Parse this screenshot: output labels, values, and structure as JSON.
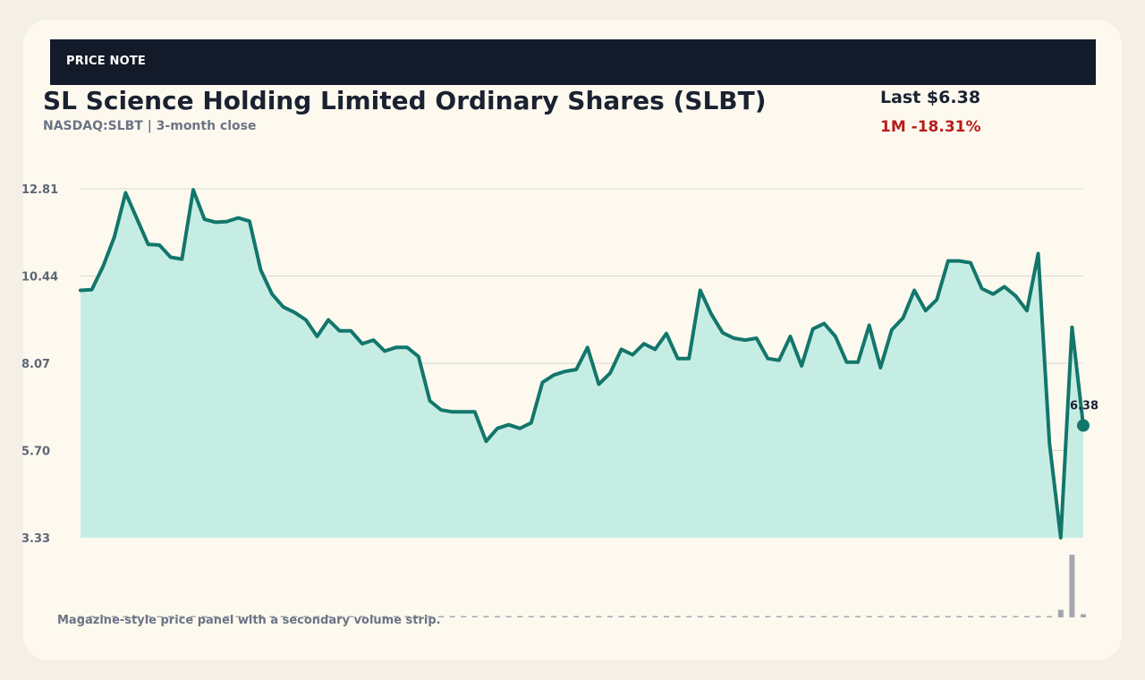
{
  "banner": {
    "label": "PRICE NOTE"
  },
  "header": {
    "title": "SL Science Holding Limited Ordinary Shares (SLBT)",
    "subtitle": "NASDAQ:SLBT | 3-month close",
    "last": "Last $6.38",
    "change": "1M -18.31%"
  },
  "caption": "Magazine-style price panel with a secondary volume strip.",
  "colors": {
    "line": "#13766b",
    "area": "#c6ede4",
    "grid": "#d9d6cc",
    "volume": "#a3a6b0",
    "negative": "#b91c1c"
  },
  "chart_data": {
    "type": "area",
    "y_ticks": [
      "12.81",
      "10.44",
      "8.07",
      "5.70",
      "3.33"
    ],
    "ylim": [
      3.33,
      12.81
    ],
    "end_label": "6.38",
    "price": [
      10.05,
      10.07,
      10.7,
      11.5,
      12.7,
      12.0,
      11.3,
      11.28,
      10.95,
      10.9,
      12.78,
      11.98,
      11.9,
      11.92,
      12.02,
      11.93,
      10.6,
      9.95,
      9.6,
      9.45,
      9.25,
      8.8,
      9.25,
      8.95,
      8.95,
      8.6,
      8.7,
      8.4,
      8.5,
      8.5,
      8.25,
      7.05,
      6.8,
      6.75,
      6.75,
      6.75,
      5.95,
      6.3,
      6.4,
      6.3,
      6.45,
      7.55,
      7.75,
      7.85,
      7.9,
      8.5,
      7.5,
      7.8,
      8.45,
      8.3,
      8.6,
      8.45,
      8.88,
      8.2,
      8.2,
      10.05,
      9.4,
      8.9,
      8.75,
      8.7,
      8.75,
      8.2,
      8.15,
      8.8,
      8.0,
      9.0,
      9.15,
      8.8,
      8.1,
      8.1,
      9.1,
      7.95,
      8.98,
      9.3,
      10.05,
      9.5,
      9.8,
      10.85,
      10.85,
      10.8,
      10.1,
      9.95,
      10.15,
      9.9,
      9.5,
      11.05,
      5.9,
      3.33,
      9.05,
      6.38
    ],
    "volume": [
      0.02,
      0.02,
      0.02,
      0.02,
      0.02,
      0.02,
      0.02,
      0.02,
      0.02,
      0.02,
      0.02,
      0.02,
      0.02,
      0.02,
      0.02,
      0.02,
      0.02,
      0.02,
      0.02,
      0.02,
      0.02,
      0.02,
      0.02,
      0.02,
      0.02,
      0.02,
      0.02,
      0.02,
      0.02,
      0.02,
      0.02,
      0.02,
      0.02,
      0.02,
      0.02,
      0.01,
      0.02,
      0.02,
      0.02,
      0.02,
      0.02,
      0.02,
      0.02,
      0.02,
      0.02,
      0.02,
      0.02,
      0.02,
      0.02,
      0.02,
      0.02,
      0.02,
      0.02,
      0.02,
      0.02,
      0.01,
      0.02,
      0.02,
      0.02,
      0.02,
      0.02,
      0.02,
      0.02,
      0.02,
      0.02,
      0.02,
      0.02,
      0.02,
      0.02,
      0.02,
      0.02,
      0.01,
      0.02,
      0.02,
      0.02,
      0.02,
      0.02,
      0.02,
      0.02,
      0.01,
      0.02,
      0.02,
      0.02,
      0.02,
      0.02,
      0.02,
      0.02,
      0.12,
      1.0,
      0.05
    ]
  }
}
